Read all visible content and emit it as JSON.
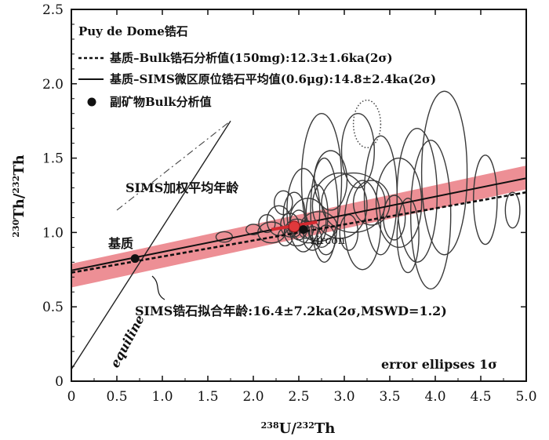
{
  "chart_data": {
    "type": "scatter",
    "title": "Puy de Dome锆石",
    "xlabel_iso": "238",
    "xlabel_el": "U",
    "xlabel_iso2": "232",
    "xlabel_el2": "Th",
    "ylabel_iso": "230",
    "ylabel_el": "Th",
    "ylabel_iso2": "232",
    "ylabel_el2": "Th",
    "xlim": [
      0,
      5.0
    ],
    "ylim": [
      0,
      2.5
    ],
    "x_ticks": [
      "0",
      "0.5",
      "1.0",
      "1.5",
      "2.0",
      "2.5",
      "3.0",
      "3.5",
      "4.0",
      "4.5",
      "5.0"
    ],
    "y_ticks": [
      "0",
      "0.5",
      "1.0",
      "1.5",
      "2.0",
      "2.5"
    ],
    "legend": [
      {
        "label": "基质–Bulk锆石分析值(150mg):12.3±1.6ka(2σ)",
        "style": "dashed"
      },
      {
        "label": "基质–SIMS微区原位锆石平均值(0.6μg):14.8±2.4ka(2σ)",
        "style": "solid"
      },
      {
        "label": "副矿物Bulk分析值",
        "style": "dot"
      }
    ],
    "annotations": {
      "sims_weighted": "SIMS加权平均年龄",
      "matrix": "基质",
      "zircon": "zircon",
      "sims_fit": "SIMS锆石拟合年龄:16.4±7.2ka(2σ,MSWD=1.2)",
      "equiline": "equiline",
      "error_note": "error ellipses 1σ"
    },
    "lines": {
      "equiline": {
        "x": [
          0,
          1.75
        ],
        "y": [
          0.08,
          1.75
        ]
      },
      "equiline_dashed": {
        "x": [
          0.5,
          1.75
        ],
        "y": [
          1.15,
          1.75
        ]
      },
      "bulk_dashed": {
        "x": [
          0,
          5.0
        ],
        "y": [
          0.73,
          1.27
        ]
      },
      "sims_mean_solid": {
        "x": [
          0,
          5.0
        ],
        "y": [
          0.745,
          1.365
        ]
      },
      "fit_band": {
        "x": [
          0,
          5.0
        ],
        "y_low": [
          0.63,
          1.29
        ],
        "y_high": [
          0.79,
          1.45
        ]
      },
      "fit_core": {
        "x": [
          2.2,
          2.7
        ],
        "y": [
          1.02,
          1.07
        ]
      }
    },
    "points": [
      {
        "name": "matrix",
        "x": 0.7,
        "y": 0.825,
        "color": "#111111"
      },
      {
        "name": "sims-mean",
        "x": 2.45,
        "y": 1.04,
        "color": "#e0383b"
      },
      {
        "name": "zircon-bulk",
        "x": 2.55,
        "y": 1.02,
        "color": "#111111"
      }
    ],
    "ellipses": [
      {
        "x": 1.68,
        "y": 0.97,
        "rx": 0.09,
        "ry": 0.035
      },
      {
        "x": 2.0,
        "y": 1.02,
        "rx": 0.08,
        "ry": 0.035
      },
      {
        "x": 2.15,
        "y": 1.06,
        "rx": 0.09,
        "ry": 0.06
      },
      {
        "x": 2.2,
        "y": 1.0,
        "rx": 0.15,
        "ry": 0.07
      },
      {
        "x": 2.28,
        "y": 1.08,
        "rx": 0.13,
        "ry": 0.1
      },
      {
        "x": 2.33,
        "y": 1.2,
        "rx": 0.1,
        "ry": 0.08
      },
      {
        "x": 2.35,
        "y": 0.97,
        "rx": 0.08,
        "ry": 0.06
      },
      {
        "x": 2.4,
        "y": 1.05,
        "rx": 0.1,
        "ry": 0.08
      },
      {
        "x": 2.45,
        "y": 1.12,
        "rx": 0.12,
        "ry": 0.15
      },
      {
        "x": 2.48,
        "y": 1.0,
        "rx": 0.14,
        "ry": 0.09
      },
      {
        "x": 2.5,
        "y": 1.05,
        "rx": 0.1,
        "ry": 0.1
      },
      {
        "x": 2.55,
        "y": 1.15,
        "rx": 0.18,
        "ry": 0.28
      },
      {
        "x": 2.58,
        "y": 1.02,
        "rx": 0.08,
        "ry": 0.06
      },
      {
        "x": 2.6,
        "y": 1.08,
        "rx": 0.2,
        "ry": 0.15
      },
      {
        "x": 2.65,
        "y": 0.96,
        "rx": 0.1,
        "ry": 0.08
      },
      {
        "x": 2.7,
        "y": 1.12,
        "rx": 0.12,
        "ry": 0.2
      },
      {
        "x": 2.72,
        "y": 1.04,
        "rx": 0.2,
        "ry": 0.1
      },
      {
        "x": 2.75,
        "y": 1.35,
        "rx": 0.22,
        "ry": 0.45
      },
      {
        "x": 2.78,
        "y": 1.15,
        "rx": 0.15,
        "ry": 0.35
      },
      {
        "x": 2.8,
        "y": 0.95,
        "rx": 0.1,
        "ry": 0.1
      },
      {
        "x": 2.85,
        "y": 1.35,
        "rx": 0.18,
        "ry": 0.2
      },
      {
        "x": 2.95,
        "y": 1.18,
        "rx": 0.3,
        "ry": 0.22
      },
      {
        "x": 3.05,
        "y": 1.0,
        "rx": 0.1,
        "ry": 0.12
      },
      {
        "x": 3.1,
        "y": 1.2,
        "rx": 0.35,
        "ry": 0.2
      },
      {
        "x": 3.15,
        "y": 1.55,
        "rx": 0.18,
        "ry": 0.25
      },
      {
        "x": 3.2,
        "y": 1.05,
        "rx": 0.2,
        "ry": 0.3
      },
      {
        "x": 3.3,
        "y": 1.2,
        "rx": 0.2,
        "ry": 0.15
      },
      {
        "x": 3.4,
        "y": 1.25,
        "rx": 0.18,
        "ry": 0.4
      },
      {
        "x": 3.55,
        "y": 1.1,
        "rx": 0.12,
        "ry": 0.15
      },
      {
        "x": 3.6,
        "y": 1.2,
        "rx": 0.25,
        "ry": 0.3
      },
      {
        "x": 3.7,
        "y": 0.98,
        "rx": 0.12,
        "ry": 0.25
      },
      {
        "x": 3.8,
        "y": 1.25,
        "rx": 0.22,
        "ry": 0.45
      },
      {
        "x": 3.95,
        "y": 1.12,
        "rx": 0.22,
        "ry": 0.5
      },
      {
        "x": 4.1,
        "y": 1.4,
        "rx": 0.25,
        "ry": 0.55
      },
      {
        "x": 4.55,
        "y": 1.22,
        "rx": 0.13,
        "ry": 0.3
      },
      {
        "x": 4.85,
        "y": 1.15,
        "rx": 0.08,
        "ry": 0.12
      }
    ],
    "dotted_ellipse": {
      "x": 3.25,
      "y": 1.73,
      "rx": 0.15,
      "ry": 0.16
    }
  }
}
